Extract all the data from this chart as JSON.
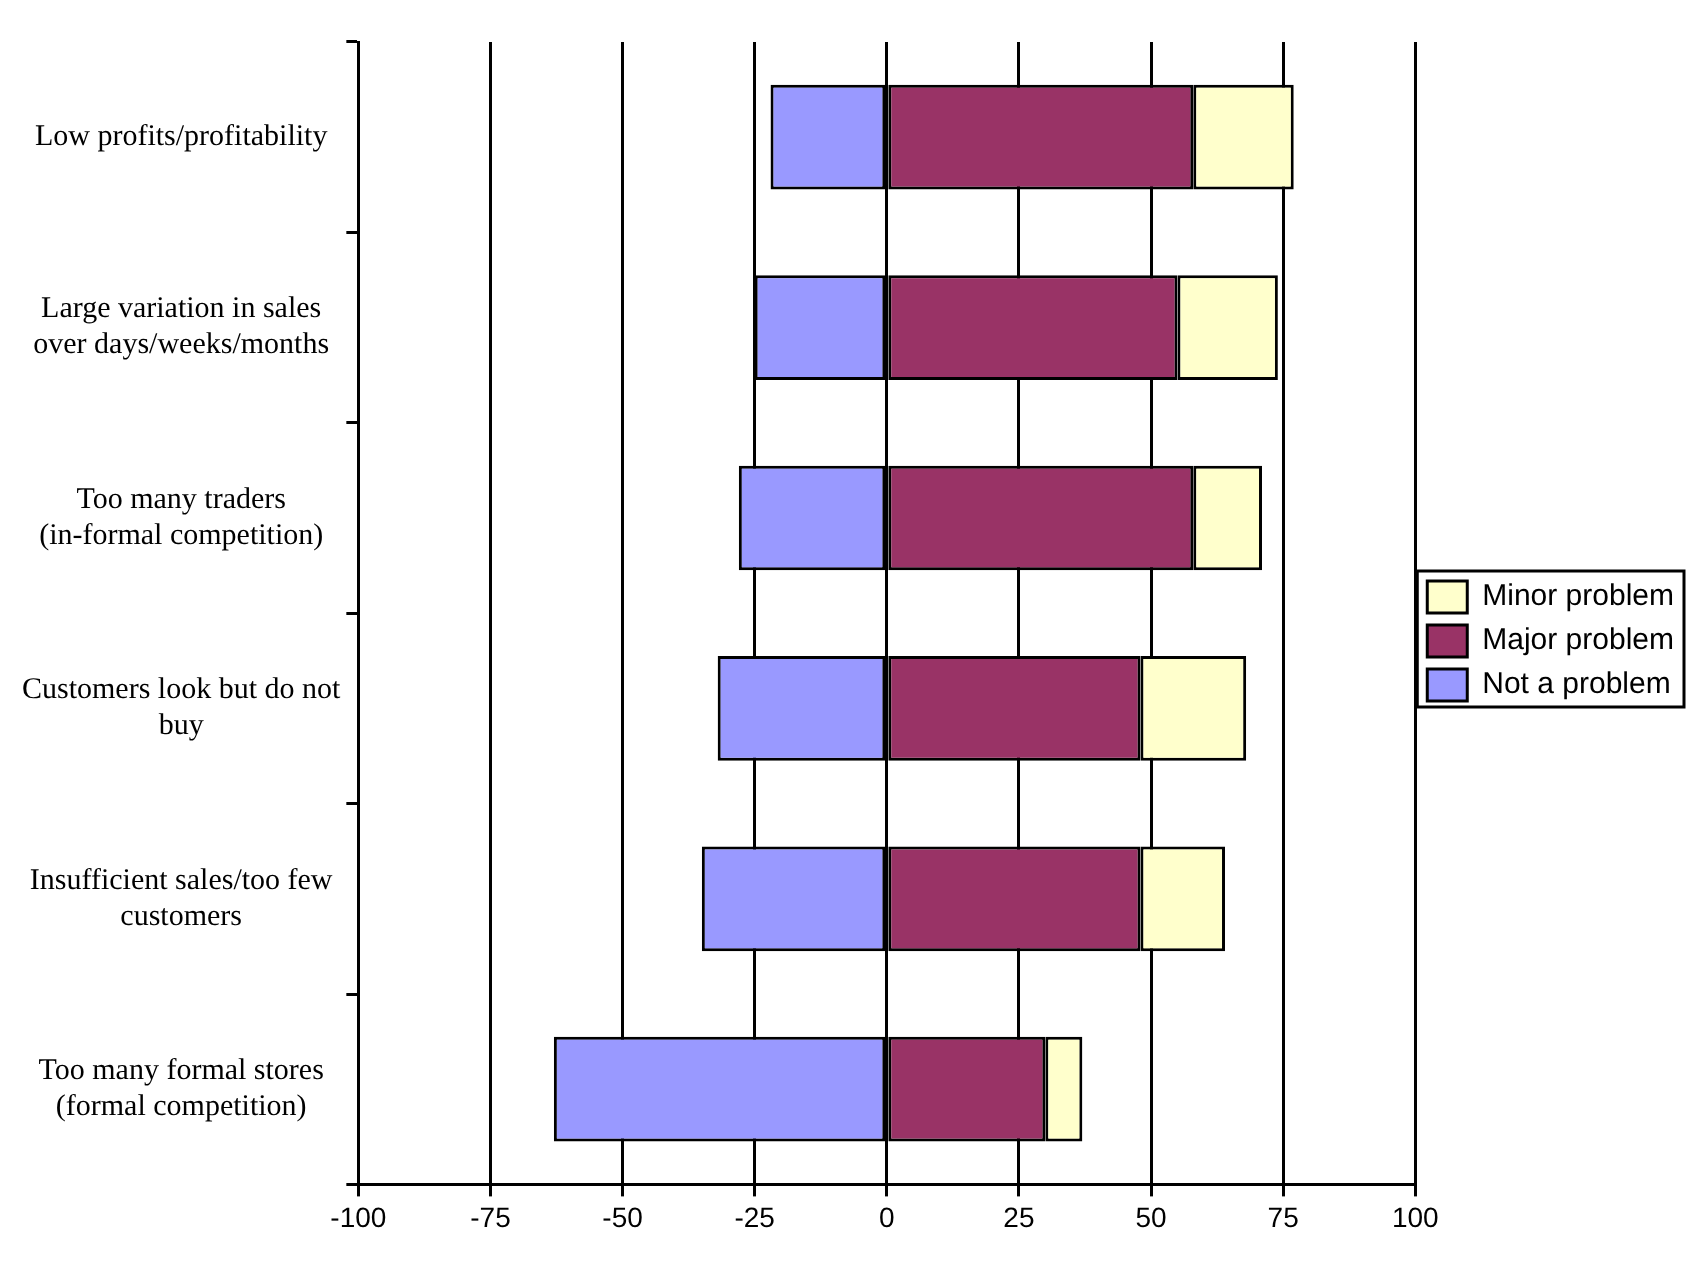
{
  "chart_data": {
    "type": "bar",
    "orientation": "horizontal",
    "stacked": true,
    "categories": [
      "Low profits/profitability",
      "Large variation in sales over days/weeks/months",
      "Too many traders (in-formal competition)",
      "Customers look but do not buy",
      "Insufficient sales/too few customers",
      "Too many formal stores (formal competition)"
    ],
    "series": [
      {
        "name": "Not a problem",
        "color": "#9999ff",
        "values": [
          -22,
          -25,
          -28,
          -32,
          -35,
          -63
        ]
      },
      {
        "name": "Major problem",
        "color": "#993366",
        "values": [
          58,
          55,
          58,
          48,
          48,
          30
        ]
      },
      {
        "name": "Minor problem",
        "color": "#ffffcc",
        "values": [
          19,
          19,
          13,
          20,
          16,
          7
        ]
      }
    ],
    "xlim": [
      -100,
      100
    ],
    "xticks": [
      -100,
      -75,
      -50,
      -25,
      0,
      25,
      50,
      75,
      100
    ],
    "grid": "x",
    "legend": "right"
  }
}
